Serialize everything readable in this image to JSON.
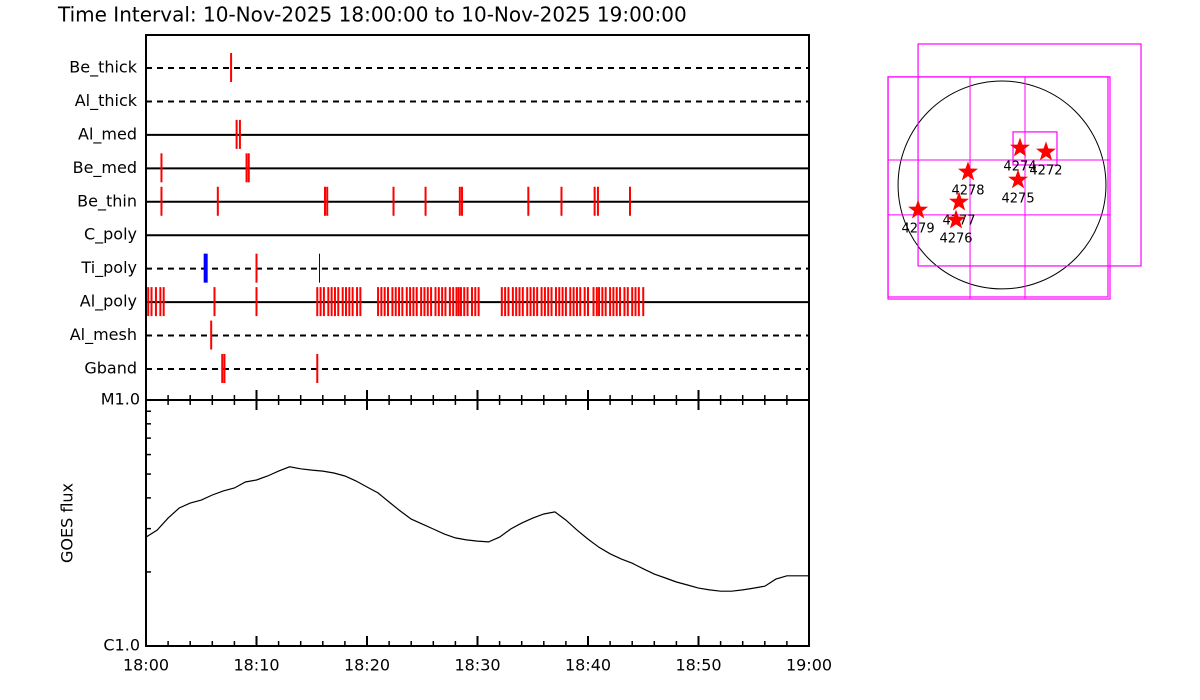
{
  "chart_data": [
    {
      "type": "timeline",
      "title": "Time Interval: 10-Nov-2025 18:00:00 to 10-Nov-2025 19:00:00",
      "xlim": [
        0,
        60
      ],
      "series": [
        {
          "name": "Be_thick",
          "style": "dashed",
          "color": "#ff0000",
          "values": [
            7.7
          ]
        },
        {
          "name": "Al_thick",
          "style": "dashed",
          "color": "#ff0000",
          "values": []
        },
        {
          "name": "Al_med",
          "style": "solid",
          "color": "#ff0000",
          "values": [
            8.2,
            8.5
          ]
        },
        {
          "name": "Be_med",
          "style": "solid",
          "color": "#ff0000",
          "values": [
            1.4,
            9.1,
            9.3
          ]
        },
        {
          "name": "Be_thin",
          "style": "solid",
          "color": "#ff0000",
          "values": [
            1.4,
            6.5,
            16.2,
            16.4,
            22.4,
            25.3,
            28.4,
            28.6,
            34.6,
            37.6,
            40.6,
            40.9,
            43.8
          ]
        },
        {
          "name": "C_poly",
          "style": "solid",
          "color": "#ff0000",
          "values": []
        },
        {
          "name": "Ti_poly",
          "style": "dashed",
          "color": "#ff0000",
          "values": [
            5.4,
            10.0,
            15.7
          ],
          "colors": [
            "#0000ff",
            "#ff0000",
            "#000080"
          ],
          "widths": [
            4,
            2,
            1
          ]
        },
        {
          "name": "Al_poly",
          "style": "solid",
          "color": "#ff0000",
          "values": [
            0.2,
            0.5,
            0.9,
            1.3,
            1.6,
            6.2,
            10.0,
            15.5,
            15.8,
            16.1,
            16.5,
            16.8,
            17.1,
            17.4,
            17.8,
            18.1,
            18.4,
            18.7,
            19.1,
            19.4,
            21.0,
            21.3,
            21.6,
            21.9,
            22.3,
            22.6,
            22.9,
            23.2,
            23.6,
            23.9,
            24.2,
            24.5,
            24.9,
            25.2,
            25.5,
            25.8,
            26.2,
            26.5,
            26.8,
            27.1,
            27.5,
            27.8,
            28.1,
            28.3,
            28.5,
            28.8,
            29.1,
            29.5,
            29.8,
            30.1,
            32.2,
            32.5,
            32.8,
            33.2,
            33.5,
            33.8,
            34.1,
            34.5,
            34.8,
            35.1,
            35.4,
            35.8,
            36.1,
            36.4,
            36.7,
            37.1,
            37.4,
            37.7,
            38.0,
            38.4,
            38.7,
            39.0,
            39.3,
            39.7,
            40.0,
            40.5,
            40.8,
            41.0,
            41.3,
            41.6,
            42.0,
            42.3,
            42.6,
            42.9,
            43.3,
            43.6,
            44.0,
            44.3,
            44.6,
            45.0
          ]
        },
        {
          "name": "Al_mesh",
          "style": "dashed",
          "color": "#ff0000",
          "values": [
            5.9
          ]
        },
        {
          "name": "Gband",
          "style": "dashed",
          "color": "#ff0000",
          "values": [
            6.9,
            7.1,
            15.5
          ]
        }
      ]
    },
    {
      "type": "line",
      "ylabel": "GOES flux",
      "log_scale": true,
      "color": "#000000",
      "xlim": [
        0,
        60
      ],
      "xticks": [
        {
          "value": 0,
          "label": "18:00"
        },
        {
          "value": 10,
          "label": "18:10"
        },
        {
          "value": 20,
          "label": "18:20"
        },
        {
          "value": 30,
          "label": "18:30"
        },
        {
          "value": 40,
          "label": "18:40"
        },
        {
          "value": 50,
          "label": "18:50"
        },
        {
          "value": 60,
          "label": "19:00"
        }
      ],
      "xminor_ticks": [
        2,
        4,
        6,
        8,
        12,
        14,
        16,
        18,
        22,
        24,
        26,
        28,
        32,
        34,
        36,
        38,
        42,
        44,
        46,
        48,
        52,
        54,
        56,
        58
      ],
      "ylim": [
        1e-06,
        1e-05
      ],
      "yticks": [
        {
          "value": 1e-06,
          "label": "C1.0"
        },
        {
          "value": 1e-05,
          "label": "M1.0"
        }
      ],
      "yminor_ticks": [
        2e-06,
        3e-06,
        4e-06,
        5e-06,
        6e-06,
        7e-06,
        8e-06,
        9e-06
      ],
      "x": [
        0,
        1,
        2,
        3,
        4,
        5,
        6,
        7,
        8,
        9,
        10,
        11,
        12,
        13,
        14,
        15,
        16,
        17,
        18,
        19,
        20,
        21,
        22,
        23,
        24,
        25,
        26,
        27,
        28,
        29,
        30,
        31,
        32,
        33,
        34,
        35,
        36,
        37,
        38,
        39,
        40,
        41,
        42,
        43,
        44,
        45,
        46,
        47,
        48,
        49,
        50,
        51,
        52,
        53,
        54,
        55,
        56,
        57,
        58,
        59,
        60
      ],
      "values": [
        2.77e-06,
        2.96e-06,
        3.31e-06,
        3.64e-06,
        3.81e-06,
        3.92e-06,
        4.11e-06,
        4.27e-06,
        4.39e-06,
        4.64e-06,
        4.73e-06,
        4.91e-06,
        5.14e-06,
        5.35e-06,
        5.25e-06,
        5.19e-06,
        5.14e-06,
        5.05e-06,
        4.91e-06,
        4.69e-06,
        4.43e-06,
        4.19e-06,
        3.85e-06,
        3.54e-06,
        3.28e-06,
        3.13e-06,
        2.99e-06,
        2.85e-06,
        2.75e-06,
        2.7e-06,
        2.67e-06,
        2.65e-06,
        2.77e-06,
        2.99e-06,
        3.16e-06,
        3.31e-06,
        3.44e-06,
        3.51e-06,
        3.25e-06,
        2.96e-06,
        2.72e-06,
        2.52e-06,
        2.37e-06,
        2.26e-06,
        2.17e-06,
        2.06e-06,
        1.96e-06,
        1.89e-06,
        1.82e-06,
        1.77e-06,
        1.72e-06,
        1.69e-06,
        1.67e-06,
        1.67e-06,
        1.69e-06,
        1.72e-06,
        1.75e-06,
        1.87e-06,
        1.93e-06,
        1.93e-06,
        1.93e-06
      ]
    },
    {
      "type": "map",
      "xlim": [
        -1141,
        1384
      ],
      "ylim": [
        -1122,
        1402
      ],
      "solar_radius": 972,
      "box_color": "#ff00ff",
      "star_color": "#ff0000",
      "fov_boxes": [
        {
          "x": [
            -785,
            1300
          ],
          "y": [
            -757,
            1318
          ]
        },
        {
          "x": [
            -1066,
            1010
          ],
          "y": [
            -1066,
            1010
          ],
          "grid_x": [
            -299,
            215
          ],
          "grid_y": [
            -280,
            234
          ]
        },
        {
          "x": [
            -1066,
            991
          ],
          "y": [
            -1047,
            1010
          ]
        },
        {
          "x": [
            103,
            514
          ],
          "y": [
            187,
            496
          ]
        }
      ],
      "regions": [
        {
          "label": "4274",
          "x": 168,
          "y": 346
        },
        {
          "label": "4272",
          "x": 411,
          "y": 309
        },
        {
          "label": "4275",
          "x": 150,
          "y": 47
        },
        {
          "label": "4278",
          "x": -318,
          "y": 122
        },
        {
          "label": "4277",
          "x": -402,
          "y": -159
        },
        {
          "label": "4276",
          "x": -430,
          "y": -327
        },
        {
          "label": "4279",
          "x": -785,
          "y": -234
        }
      ]
    }
  ]
}
